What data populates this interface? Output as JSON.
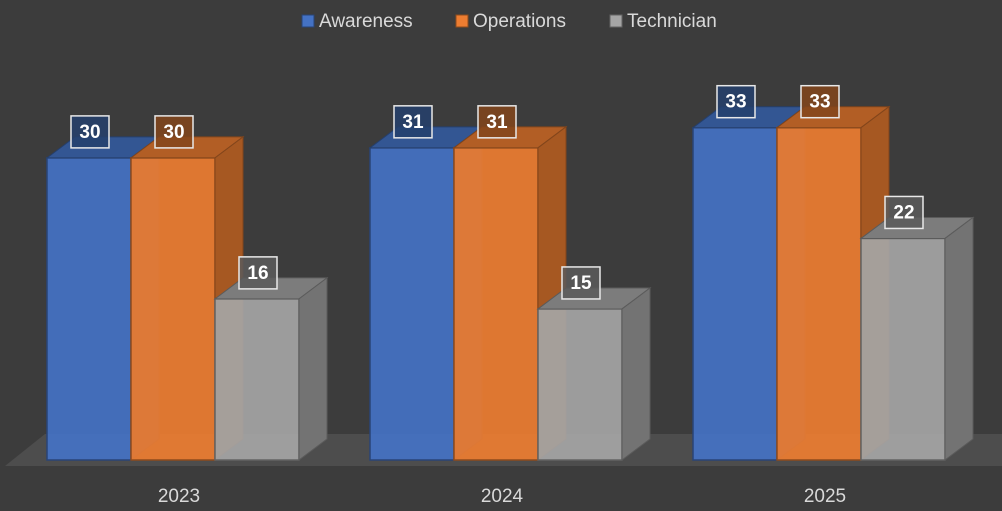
{
  "chart_data": {
    "type": "bar3d",
    "categories": [
      "2023",
      "2024",
      "2025"
    ],
    "series": [
      {
        "name": "Awareness",
        "color": "#4472c4",
        "values": [
          30,
          31,
          33
        ]
      },
      {
        "name": "Operations",
        "color": "#ed7d31",
        "values": [
          30,
          31,
          33
        ]
      },
      {
        "name": "Technician",
        "color": "#a5a5a5",
        "values": [
          16,
          15,
          22
        ]
      }
    ],
    "legend": "top"
  }
}
